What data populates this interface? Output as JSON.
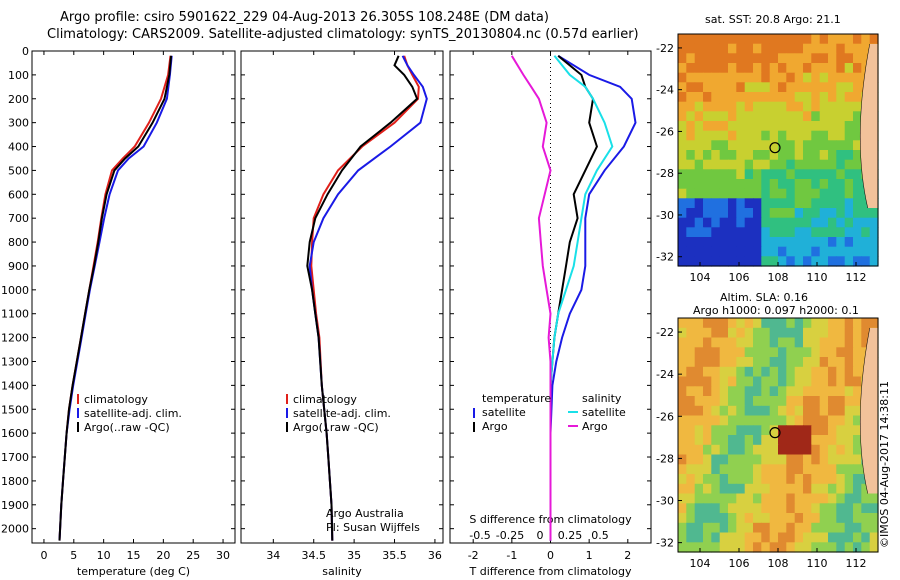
{
  "titles": {
    "line1": "Argo profile: csiro 5901622_229 04-Aug-2013 26.305S 108.248E (DM data)",
    "line2": "Climatology: CARS2009. Satellite-adjusted climatology: synTS_20130804.nc (0.57d earlier)"
  },
  "watermark": "©IMOS 04-Aug-2017 14:38:11",
  "colors": {
    "climatology": "#e0201a",
    "satellite": "#1a1ae6",
    "argo": "#000000",
    "cyan": "#19e0e8",
    "magenta": "#e619d8"
  },
  "depth_axis": {
    "ticks": [
      0,
      100,
      200,
      300,
      400,
      500,
      600,
      700,
      800,
      900,
      1000,
      1100,
      1200,
      1300,
      1400,
      1500,
      1600,
      1700,
      1800,
      1900,
      2000
    ],
    "ylim": [
      0,
      2060
    ]
  },
  "chart_data": [
    {
      "type": "line",
      "name": "temperature",
      "xlabel": "temperature (deg C)",
      "xlim": [
        -2,
        32
      ],
      "xticks": [
        0,
        5,
        10,
        15,
        20,
        25,
        30
      ],
      "legend": [
        "climatology",
        "satellite-adj. clim.",
        "Argo(..raw -QC)"
      ],
      "series": [
        {
          "name": "climatology",
          "color": "red",
          "x": [
            21.2,
            20.8,
            19.6,
            17.6,
            15.2,
            13.2,
            11.4,
            10.3,
            9.6,
            9.0,
            8.3,
            7.6,
            6.9,
            6.2,
            5.5,
            4.8,
            4.2,
            3.8,
            3.5,
            3.2,
            2.9,
            2.7,
            2.6
          ],
          "depth": [
            20,
            100,
            200,
            300,
            400,
            450,
            500,
            600,
            700,
            800,
            900,
            1000,
            1100,
            1200,
            1300,
            1400,
            1500,
            1600,
            1700,
            1800,
            1900,
            2000,
            2050
          ]
        },
        {
          "name": "satellite",
          "color": "blue",
          "x": [
            21.4,
            21.1,
            20.6,
            18.9,
            16.7,
            14.2,
            12.4,
            11.0,
            10.1,
            9.3,
            8.5,
            7.7,
            7.0,
            6.3,
            5.6,
            4.9,
            4.3,
            3.8,
            3.5,
            3.2,
            2.9,
            2.7,
            2.6
          ],
          "depth": [
            20,
            100,
            200,
            300,
            400,
            450,
            500,
            600,
            700,
            800,
            900,
            1000,
            1100,
            1200,
            1300,
            1400,
            1500,
            1600,
            1700,
            1800,
            1900,
            2000,
            2050
          ]
        },
        {
          "name": "argo",
          "color": "black",
          "x": [
            21.3,
            21.0,
            20.2,
            18.2,
            15.8,
            13.6,
            11.8,
            10.5,
            9.7,
            9.1,
            8.4,
            7.6,
            6.9,
            6.2,
            5.5,
            4.8,
            4.2,
            3.8,
            3.5,
            3.2,
            2.9,
            2.7,
            2.6
          ],
          "depth": [
            20,
            100,
            200,
            300,
            400,
            450,
            500,
            600,
            700,
            800,
            900,
            1000,
            1100,
            1200,
            1300,
            1400,
            1500,
            1600,
            1700,
            1800,
            1900,
            2000,
            2050
          ]
        }
      ]
    },
    {
      "type": "line",
      "name": "salinity",
      "xlabel": "salinity",
      "xlim": [
        33.6,
        36.1
      ],
      "xticks": [
        34,
        34.5,
        35,
        35.5,
        36
      ],
      "legend": [
        "climatology",
        "satellite-adj. clim.",
        "Argo(..raw -QC)"
      ],
      "annotation": [
        "Argo Australia",
        "PI: Susan Wijffels"
      ],
      "series": [
        {
          "name": "climatology",
          "color": "red",
          "x": [
            35.62,
            35.66,
            35.72,
            35.8,
            35.79,
            35.5,
            35.1,
            34.8,
            34.62,
            34.5,
            34.48,
            34.47,
            34.5,
            34.53,
            34.57,
            34.6,
            34.63,
            34.66,
            34.68,
            34.7,
            34.72,
            34.73
          ],
          "depth": [
            20,
            60,
            100,
            150,
            200,
            300,
            400,
            500,
            600,
            700,
            800,
            900,
            1000,
            1100,
            1200,
            1400,
            1500,
            1600,
            1700,
            1800,
            1900,
            2050
          ]
        },
        {
          "name": "satellite",
          "color": "blue",
          "x": [
            35.6,
            35.66,
            35.74,
            35.85,
            35.9,
            35.82,
            35.45,
            35.05,
            34.8,
            34.62,
            34.5,
            34.45,
            34.48,
            34.52,
            34.56,
            34.6,
            34.63,
            34.66,
            34.68,
            34.7,
            34.72,
            34.73
          ],
          "depth": [
            20,
            60,
            100,
            150,
            200,
            300,
            400,
            500,
            600,
            700,
            800,
            900,
            1000,
            1100,
            1200,
            1400,
            1500,
            1600,
            1700,
            1800,
            1900,
            2050
          ]
        },
        {
          "name": "argo",
          "color": "black",
          "x": [
            35.55,
            35.5,
            35.62,
            35.72,
            35.78,
            35.45,
            35.08,
            34.85,
            34.67,
            34.52,
            34.45,
            34.42,
            34.48,
            34.52,
            34.56,
            34.6,
            34.63,
            34.66,
            34.68,
            34.7,
            34.72,
            34.73
          ],
          "depth": [
            20,
            60,
            100,
            150,
            200,
            300,
            400,
            500,
            600,
            700,
            800,
            900,
            1000,
            1100,
            1200,
            1400,
            1500,
            1600,
            1700,
            1800,
            1900,
            2050
          ]
        }
      ]
    },
    {
      "type": "line",
      "name": "difference",
      "xlabel": "T difference from climatology",
      "xlabel_top": "S difference from climatology",
      "xlim": [
        -2.6,
        2.6
      ],
      "xticks": [
        -2,
        -1,
        0,
        1,
        2
      ],
      "s_ticks": [
        "-0.5",
        "-0.25",
        "0",
        "0.25",
        "0.5"
      ],
      "legend_temperature": [
        "temperature",
        "satellite",
        "Argo"
      ],
      "legend_salinity": [
        "salinity",
        "satellite",
        "Argo"
      ],
      "series": [
        {
          "name": "temperature satellite",
          "color": "blue",
          "x": [
            0.2,
            1.0,
            1.8,
            2.1,
            2.2,
            1.9,
            1.4,
            1.0,
            0.9,
            0.9,
            0.9,
            0.8,
            0.5,
            0.3,
            0.15,
            0.05,
            0.0,
            0.0,
            0.0,
            0.0
          ],
          "depth": [
            20,
            100,
            150,
            200,
            300,
            400,
            500,
            600,
            700,
            800,
            900,
            1000,
            1100,
            1200,
            1300,
            1400,
            1600,
            1800,
            1900,
            2050
          ]
        },
        {
          "name": "temperature argo",
          "color": "black",
          "x": [
            0.2,
            0.8,
            0.9,
            1.1,
            1.0,
            1.2,
            0.9,
            0.6,
            0.7,
            0.5,
            0.4,
            0.3,
            0.2,
            0.1,
            0.05,
            0.0,
            0.0,
            0.0,
            0.0
          ],
          "depth": [
            20,
            100,
            150,
            200,
            300,
            400,
            500,
            600,
            700,
            800,
            900,
            1000,
            1100,
            1200,
            1300,
            1400,
            1600,
            1800,
            2050
          ]
        },
        {
          "name": "salinity satellite",
          "color": "cyan",
          "x": [
            0.1,
            0.5,
            0.9,
            1.1,
            1.4,
            1.6,
            1.2,
            0.9,
            0.8,
            0.7,
            0.6,
            0.4,
            0.2,
            0.1,
            0.05,
            0.0,
            0.0,
            0.0,
            0.0
          ],
          "depth": [
            20,
            100,
            150,
            200,
            300,
            400,
            500,
            600,
            700,
            800,
            900,
            1000,
            1100,
            1200,
            1300,
            1400,
            1600,
            1800,
            2050
          ]
        },
        {
          "name": "salinity argo",
          "color": "magenta",
          "x": [
            -1.0,
            -0.7,
            -0.5,
            -0.3,
            -0.1,
            -0.2,
            0.0,
            -0.15,
            -0.3,
            -0.25,
            -0.2,
            -0.1,
            0.0,
            -0.05,
            0.0,
            0.0,
            0.0,
            0.0,
            0.0
          ],
          "depth": [
            20,
            100,
            150,
            200,
            300,
            400,
            500,
            600,
            700,
            800,
            900,
            1000,
            1100,
            1200,
            1300,
            1400,
            1600,
            1800,
            2050
          ]
        }
      ]
    }
  ],
  "maps": [
    {
      "name": "sst-map",
      "title": "sat. SST: 20.8 Argo: 21.1",
      "xticks": [
        "104",
        "106",
        "108",
        "110",
        "112"
      ],
      "yticks": [
        "-22",
        "-24",
        "-26",
        "-28",
        "-30",
        "-32"
      ]
    },
    {
      "name": "sla-map",
      "title_line1": "Altim. SLA: 0.16",
      "title_line2": "Argo h1000: 0.097 h2000: 0.1",
      "xticks": [
        "104",
        "106",
        "108",
        "110",
        "112"
      ],
      "yticks": [
        "-22",
        "-24",
        "-26",
        "-28",
        "-30",
        "-32"
      ]
    }
  ]
}
